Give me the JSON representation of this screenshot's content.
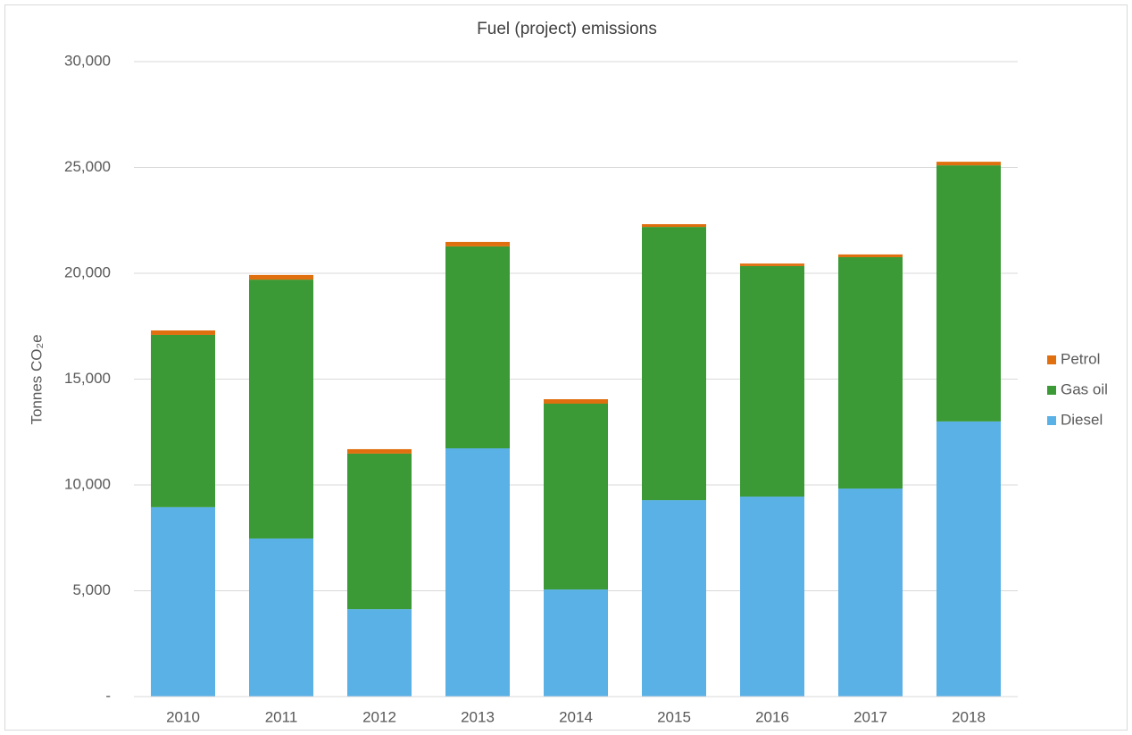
{
  "chart_data": {
    "type": "stacked_bar",
    "title": "Fuel (project) emissions",
    "y_label": "Tonnes CO₂e",
    "categories": [
      "2010",
      "2011",
      "2012",
      "2013",
      "2014",
      "2015",
      "2016",
      "2017",
      "2018"
    ],
    "series": [
      {
        "name": "Diesel",
        "color": "#5ab1e6",
        "values": [
          8950,
          7470,
          4130,
          11730,
          5060,
          9280,
          9450,
          9830,
          13000
        ]
      },
      {
        "name": "Gas oil",
        "color": "#3b9a35",
        "values": [
          8140,
          12230,
          7350,
          9540,
          8780,
          12910,
          10890,
          10930,
          12100
        ]
      },
      {
        "name": "Petrol",
        "color": "#e0700f",
        "values": [
          210,
          220,
          210,
          210,
          210,
          130,
          120,
          130,
          170
        ]
      }
    ],
    "ylim": [
      0,
      30000
    ],
    "yticks": [
      {
        "value": 0,
        "label": "-"
      },
      {
        "value": 5000,
        "label": "5,000"
      },
      {
        "value": 10000,
        "label": "10,000"
      },
      {
        "value": 15000,
        "label": "15,000"
      },
      {
        "value": 20000,
        "label": "20,000"
      },
      {
        "value": 25000,
        "label": "25,000"
      },
      {
        "value": 30000,
        "label": "30,000"
      }
    ],
    "grid": true,
    "legend": "right"
  }
}
